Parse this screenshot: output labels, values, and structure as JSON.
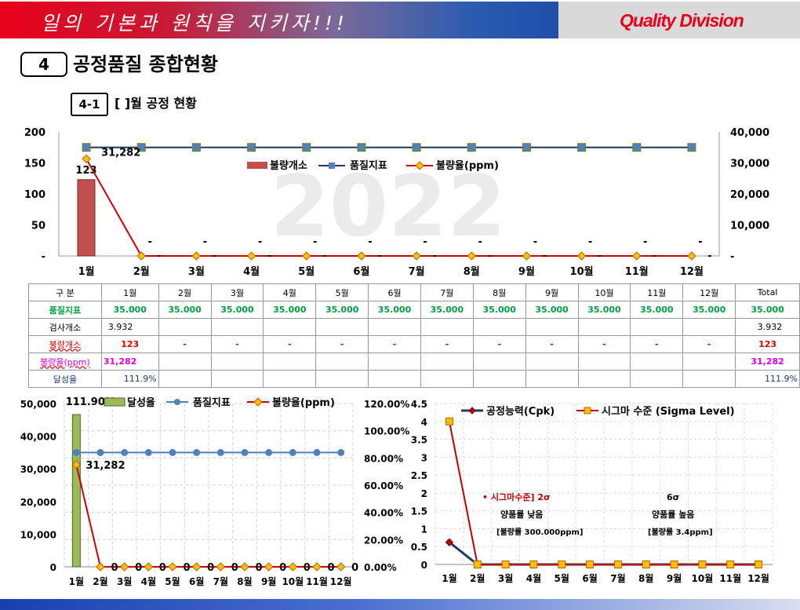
{
  "banner": {
    "slogan": "일의 기본과 원칙을 지키자!!!",
    "brand": "Quality Division"
  },
  "section": {
    "number": "4",
    "title": "공정품질 종합현황"
  },
  "subsection": {
    "number": "4-1",
    "title": "[      ]월 공정 현황"
  },
  "watermark": "2022",
  "months": [
    "1월",
    "2월",
    "3월",
    "4월",
    "5월",
    "6월",
    "7월",
    "8월",
    "9월",
    "10월",
    "11월",
    "12월"
  ],
  "table": {
    "header": [
      "구 분",
      "1월",
      "2월",
      "3월",
      "4월",
      "5월",
      "6월",
      "7월",
      "8월",
      "9월",
      "10월",
      "11월",
      "12월",
      "Total"
    ],
    "rows": [
      {
        "label": "품질지표",
        "cls": "green",
        "cells": [
          "35.000",
          "35.000",
          "35.000",
          "35.000",
          "35.000",
          "35.000",
          "35.000",
          "35.000",
          "35.000",
          "35.000",
          "35.000",
          "35.000",
          "35.000"
        ]
      },
      {
        "label": "검사개소",
        "cls": "black",
        "cells": [
          "3.932",
          "",
          "",
          "",
          "",
          "",
          "",
          "",
          "",
          "",
          "",
          "",
          "3.932"
        ]
      },
      {
        "label": "불량개소",
        "cls": "red",
        "cells": [
          "123",
          "-",
          "-",
          "-",
          "-",
          "-",
          "-",
          "-",
          "-",
          "-",
          "-",
          "-",
          "123"
        ]
      },
      {
        "label": "불량율(ppm)",
        "cls": "mag",
        "cells": [
          "31,282",
          "",
          "",
          "",
          "",
          "",
          "",
          "",
          "",
          "",
          "",
          "",
          "31,282"
        ]
      },
      {
        "label": "달성율",
        "cls": "navy",
        "cells": [
          "111.9%",
          "",
          "",
          "",
          "",
          "",
          "",
          "",
          "",
          "",
          "",
          "",
          "111.9%"
        ]
      }
    ]
  },
  "chart_data": [
    {
      "type": "bar",
      "categories": [
        "1월",
        "2월",
        "3월",
        "4월",
        "5월",
        "6월",
        "7월",
        "8월",
        "9월",
        "10월",
        "11월",
        "12월"
      ],
      "series": [
        {
          "name": "불량개소",
          "type": "bar",
          "axis": "left",
          "values": [
            123,
            0,
            0,
            0,
            0,
            0,
            0,
            0,
            0,
            0,
            0,
            0
          ],
          "labels": [
            "123",
            "-",
            "-",
            "-",
            "-",
            "-",
            "-",
            "-",
            "-",
            "-",
            "-",
            "-"
          ]
        },
        {
          "name": "품질지표",
          "type": "line",
          "axis": "right",
          "values": [
            35000,
            35000,
            35000,
            35000,
            35000,
            35000,
            35000,
            35000,
            35000,
            35000,
            35000,
            35000
          ]
        },
        {
          "name": "불량율(ppm)",
          "type": "line",
          "axis": "right",
          "values": [
            31282,
            0,
            0,
            0,
            0,
            0,
            0,
            0,
            0,
            0,
            0,
            0
          ],
          "labels": [
            "31,282",
            "-",
            "-",
            "-",
            "-",
            "-",
            "-",
            "-",
            "-",
            "-",
            "-",
            "-"
          ]
        }
      ],
      "left_ticks": [
        "200",
        "150",
        "100",
        "50",
        "-"
      ],
      "right_ticks": [
        "40,000",
        "30,000",
        "20,000",
        "10,000",
        "-"
      ],
      "left_ylim": [
        0,
        200
      ],
      "right_ylim": [
        0,
        40000
      ],
      "legend_position": "top-center",
      "grid": false
    },
    {
      "type": "bar",
      "categories": [
        "1월",
        "2월",
        "3월",
        "4월",
        "5월",
        "6월",
        "7월",
        "8월",
        "9월",
        "10월",
        "11월",
        "12월"
      ],
      "series": [
        {
          "name": "달성율",
          "type": "bar",
          "axis": "right",
          "values": [
            1.119,
            0,
            0,
            0,
            0,
            0,
            0,
            0,
            0,
            0,
            0,
            0
          ],
          "labels": [
            "111.90%"
          ]
        },
        {
          "name": "품질지표",
          "type": "line",
          "axis": "left",
          "values": [
            35000,
            35000,
            35000,
            35000,
            35000,
            35000,
            35000,
            35000,
            35000,
            35000,
            35000,
            35000
          ]
        },
        {
          "name": "불량율(ppm)",
          "type": "line",
          "axis": "left",
          "values": [
            31282,
            0,
            0,
            0,
            0,
            0,
            0,
            0,
            0,
            0,
            0,
            0
          ],
          "labels": [
            "31,282",
            "0",
            "0",
            "0",
            "0",
            "0",
            "0",
            "0",
            "0",
            "0",
            "0",
            "0"
          ]
        }
      ],
      "left_ticks": [
        "50,000",
        "40,000",
        "30,000",
        "20,000",
        "10,000",
        "0"
      ],
      "right_ticks": [
        "120.00%",
        "100.00%",
        "80.00%",
        "60.00%",
        "40.00%",
        "20.00%",
        "0.00%"
      ],
      "left_ylim": [
        0,
        50000
      ],
      "right_ylim": [
        0,
        1.2
      ],
      "legend_position": "top",
      "grid": true
    },
    {
      "type": "line",
      "categories": [
        "1월",
        "2월",
        "3월",
        "4월",
        "5월",
        "6월",
        "7월",
        "8월",
        "9월",
        "10월",
        "11월",
        "12월"
      ],
      "series": [
        {
          "name": "공정능력(Cpk)",
          "values": [
            0.62,
            0,
            0,
            0,
            0,
            0,
            0,
            0,
            0,
            0,
            0,
            0
          ]
        },
        {
          "name": "시그마 수준 (Sigma Level)",
          "values": [
            4,
            0,
            0,
            0,
            0,
            0,
            0,
            0,
            0,
            0,
            0,
            0
          ]
        }
      ],
      "ticks": [
        "4.5",
        "4",
        "3.5",
        "3",
        "2.5",
        "2",
        "1.5",
        "1",
        "0.5",
        "0"
      ],
      "ylim": [
        0,
        4.5
      ],
      "legend_position": "top",
      "grid": true,
      "annotations": {
        "low_title": "• 시그마수준] 2σ",
        "low_1": "양품률 낮음",
        "low_2": "[불량률 300.000ppm]",
        "high_title": "6σ",
        "high_1": "양품률 높음",
        "high_2": "[불량률 3.4ppm]"
      }
    }
  ],
  "colors": {
    "bar_red": "#c0504d",
    "navy": "#1f3864",
    "marker_blue": "#4f81bd",
    "diamond": "#ffc000",
    "line_red": "#cc0000",
    "bar_green": "#9bbb59",
    "cpk_navy": "#1f3864",
    "sigma_red": "#c00000",
    "sigma_marker": "#ffc000"
  }
}
